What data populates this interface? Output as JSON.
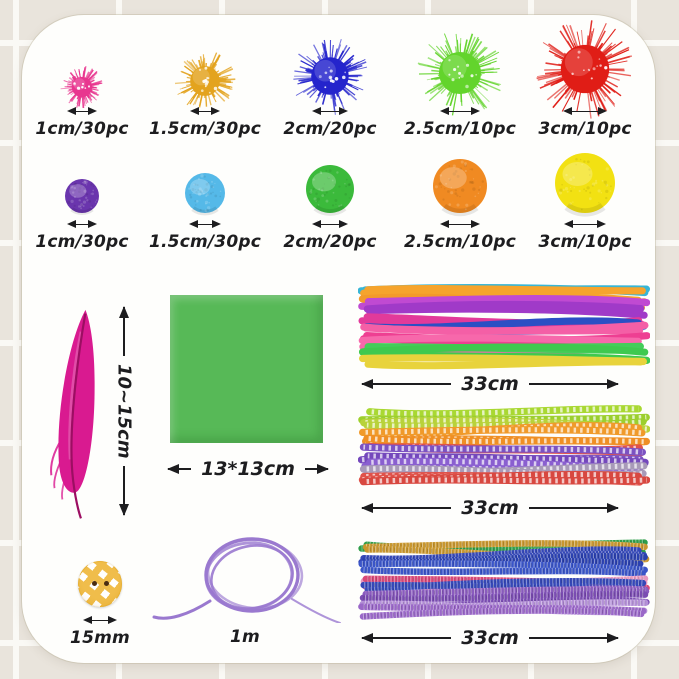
{
  "colors": {
    "background_tile": "#e9e4dc",
    "tile_grout": "#faf9f5",
    "card": "#fefefc",
    "text": "#1d1d1f"
  },
  "glitter_pompoms": {
    "items": [
      {
        "label": "1cm/30pc",
        "color": "#e8368f"
      },
      {
        "label": "1.5cm/30pc",
        "color": "#e3a31e"
      },
      {
        "label": "2cm/20pc",
        "color": "#2424cc"
      },
      {
        "label": "2.5cm/10pc",
        "color": "#63d42c"
      },
      {
        "label": "3cm/10pc",
        "color": "#e01d16"
      }
    ]
  },
  "plain_pompoms": {
    "items": [
      {
        "label": "1cm/30pc",
        "color": "#6a35ad"
      },
      {
        "label": "1.5cm/30pc",
        "color": "#55b9e8"
      },
      {
        "label": "2cm/20pc",
        "color": "#3bba3b"
      },
      {
        "label": "2.5cm/10pc",
        "color": "#f08a22"
      },
      {
        "label": "3cm/10pc",
        "color": "#f2e112"
      }
    ]
  },
  "feather": {
    "length_label": "10~15cm",
    "color": "#d91a90"
  },
  "paper": {
    "size_label": "13*13cm",
    "color": "#57b957"
  },
  "bundles": [
    {
      "length_label": "33cm",
      "style": "smooth",
      "stems_per_color": 2,
      "colors": [
        "#38b6d6",
        "#f6a42c",
        "#f39a2a",
        "#c04ad2",
        "#a03ac8",
        "#e23a9a",
        "#2b4fc4",
        "#f45fa6",
        "#ee3f92",
        "#f768ab",
        "#44cd5a",
        "#3fc94f",
        "#e8d33c"
      ]
    },
    {
      "length_label": "33cm",
      "style": "striped",
      "stems_per_color": 2,
      "colors": [
        "#a9d832",
        "#9ccf2e",
        "#b8d23a",
        "#f09a2a",
        "#ef8f24",
        "#e0524a",
        "#7c52c2",
        "#7448bc",
        "#8a5fd0",
        "#a89ab8",
        "#e0524a",
        "#d84840"
      ]
    },
    {
      "length_label": "33cm",
      "style": "glitter",
      "stems_per_color": 2,
      "colors": [
        "#2f9e4a",
        "#c9972e",
        "#3548b8",
        "#2b41b0",
        "#3a55c8",
        "#e898c0",
        "#d84878",
        "#3548b8",
        "#8a5bbe",
        "#7a4cb2",
        "#b490d8",
        "#9a68c8"
      ]
    }
  ],
  "button": {
    "size_label": "15mm",
    "color": "#eeb22c"
  },
  "cord": {
    "length_label": "1m",
    "color": "#9a79cf"
  }
}
